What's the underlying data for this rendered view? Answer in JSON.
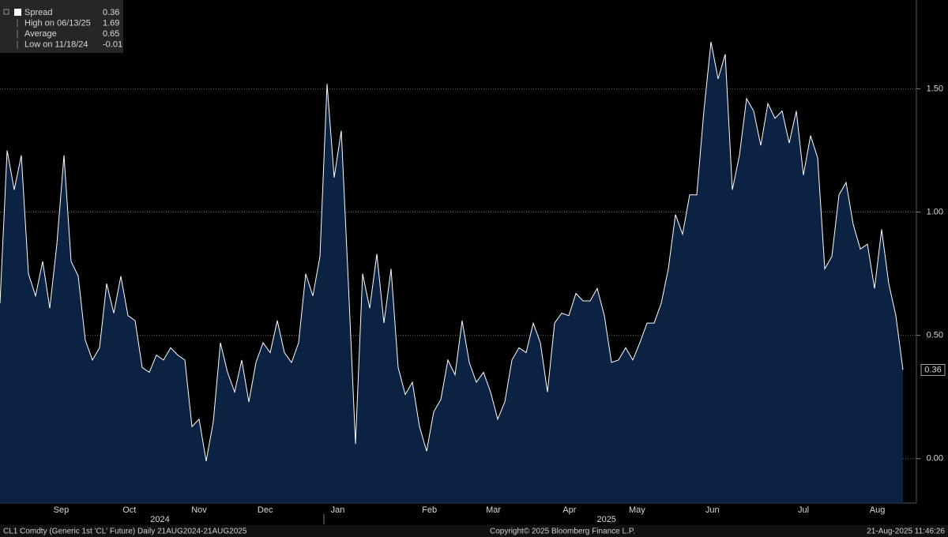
{
  "chart_data": {
    "type": "area",
    "legend": [
      {
        "label": "Spread",
        "value": 0.36
      },
      {
        "label": "High on 06/13/25",
        "value": 1.69
      },
      {
        "label": "Average",
        "value": 0.65
      },
      {
        "label": "Low on 11/18/24",
        "value": -0.01
      }
    ],
    "categories": [
      null,
      null,
      null,
      null,
      null,
      null,
      null,
      null,
      null,
      null,
      null,
      null,
      null,
      null,
      null,
      null,
      null,
      null,
      null,
      null,
      null,
      null,
      null,
      null,
      null,
      null,
      null,
      null,
      null,
      null,
      null,
      null,
      null,
      null,
      null,
      null,
      null,
      null,
      null,
      null,
      null,
      null,
      null,
      null,
      null,
      null,
      null,
      null,
      null,
      null,
      null,
      null,
      null,
      null,
      null,
      null,
      null,
      null,
      null,
      null,
      null,
      null,
      null,
      null,
      null,
      null,
      null,
      null,
      null,
      null,
      null,
      null,
      null,
      null,
      null,
      null,
      null,
      null,
      null,
      null,
      null,
      null,
      null,
      null,
      null,
      null,
      null,
      null,
      null,
      null,
      null,
      null,
      null,
      null,
      null,
      null,
      null,
      null,
      null,
      null,
      null,
      null,
      null,
      null,
      null,
      null,
      null,
      null,
      null,
      null,
      null,
      null,
      null,
      null,
      null,
      null,
      null,
      null,
      null,
      null,
      null,
      null,
      null,
      null,
      null,
      null,
      null,
      null
    ],
    "series": [
      {
        "name": "Spread",
        "color": "#ffffff",
        "fill": "#0b2242",
        "values": [
          0.63,
          1.25,
          1.09,
          1.23,
          0.75,
          0.66,
          0.8,
          0.61,
          0.87,
          1.23,
          0.8,
          0.74,
          0.48,
          0.4,
          0.45,
          0.71,
          0.59,
          0.74,
          0.58,
          0.56,
          0.37,
          0.35,
          0.42,
          0.4,
          0.45,
          0.42,
          0.4,
          0.13,
          0.16,
          -0.01,
          0.15,
          0.47,
          0.35,
          0.27,
          0.4,
          0.23,
          0.39,
          0.47,
          0.43,
          0.56,
          0.43,
          0.39,
          0.47,
          0.75,
          0.66,
          0.82,
          1.52,
          1.14,
          1.33,
          0.71,
          0.06,
          0.75,
          0.61,
          0.83,
          0.55,
          0.77,
          0.37,
          0.26,
          0.31,
          0.13,
          0.03,
          0.19,
          0.24,
          0.4,
          0.34,
          0.56,
          0.39,
          0.31,
          0.35,
          0.27,
          0.16,
          0.23,
          0.4,
          0.45,
          0.43,
          0.55,
          0.47,
          0.27,
          0.55,
          0.59,
          0.58,
          0.67,
          0.64,
          0.64,
          0.69,
          0.58,
          0.39,
          0.4,
          0.45,
          0.4,
          0.47,
          0.55,
          0.55,
          0.63,
          0.77,
          0.99,
          0.91,
          1.07,
          1.07,
          1.41,
          1.69,
          1.54,
          1.64,
          1.09,
          1.23,
          1.46,
          1.41,
          1.27,
          1.44,
          1.38,
          1.41,
          1.28,
          1.41,
          1.15,
          1.31,
          1.22,
          0.77,
          0.82,
          1.07,
          1.12,
          0.95,
          0.85,
          0.87,
          0.69,
          0.93,
          0.71,
          0.58,
          0.36
        ]
      }
    ],
    "ylim": [
      -0.18,
      1.86
    ],
    "yticks": [
      {
        "value": 0,
        "label": "0.00"
      },
      {
        "value": 0.5,
        "label": "0.50"
      },
      {
        "value": 1,
        "label": "1.00"
      },
      {
        "value": 1.5,
        "label": "1.50"
      }
    ],
    "xticks": [
      {
        "value": 8.6,
        "label": "Sep"
      },
      {
        "value": 18.2,
        "label": "Oct"
      },
      {
        "value": 28,
        "label": "Nov"
      },
      {
        "value": 37.3,
        "label": "Dec"
      },
      {
        "value": 47.5,
        "label": "Jan"
      },
      {
        "value": 60.4,
        "label": "Feb"
      },
      {
        "value": 69.4,
        "label": "Mar"
      },
      {
        "value": 80.1,
        "label": "Apr"
      },
      {
        "value": 89.6,
        "label": "May"
      },
      {
        "value": 100.2,
        "label": "Jun"
      },
      {
        "value": 113,
        "label": "Jul"
      },
      {
        "value": 123.4,
        "label": "Aug"
      }
    ],
    "year_ticks": [
      {
        "value": 22.5,
        "label": "2024"
      },
      {
        "value": 85.3,
        "label": "2025"
      }
    ],
    "grid": true,
    "footer": {
      "left": "CL1 Comdty (Generic 1st 'CL' Future)  Daily 21AUG2024-21AUG2025",
      "center": "Copyright© 2025 Bloomberg Finance L.P.",
      "right": "21-Aug-2025 11:46:26"
    }
  }
}
